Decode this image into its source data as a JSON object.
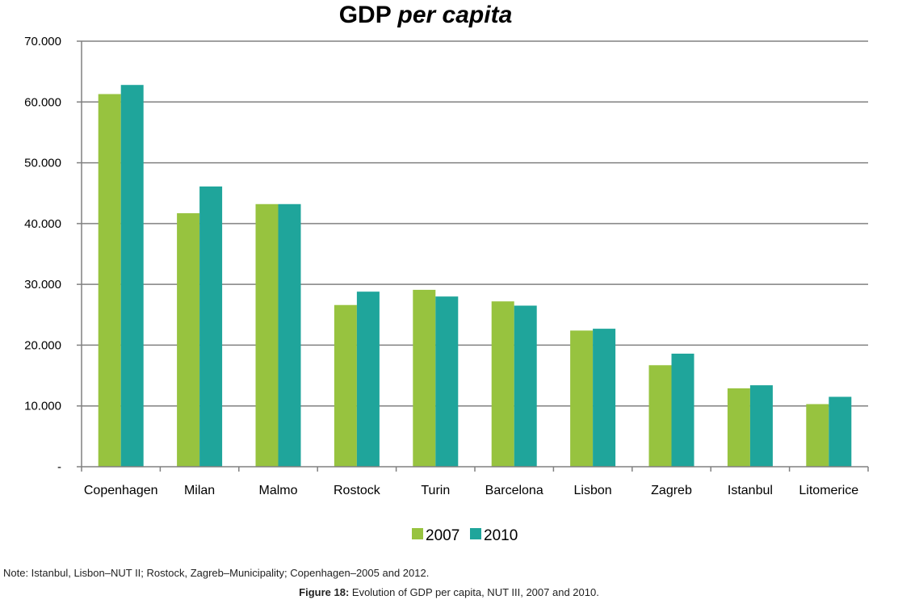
{
  "chart_data": {
    "type": "bar",
    "title": "GDP",
    "title_italic": "per capita",
    "categories": [
      "Copenhagen",
      "Milan",
      "Malmo",
      "Rostock",
      "Turin",
      "Barcelona",
      "Lisbon",
      "Zagreb",
      "Istanbul",
      "Litomerice"
    ],
    "series": [
      {
        "name": "2007",
        "color": "#97c33f",
        "values": [
          61300,
          41700,
          43200,
          26600,
          29100,
          27200,
          22400,
          16700,
          12900,
          10300
        ]
      },
      {
        "name": "2010",
        "color": "#1fa59b",
        "values": [
          62800,
          46100,
          43200,
          28800,
          28000,
          26500,
          22700,
          18600,
          13400,
          11500
        ]
      }
    ],
    "ylim": [
      0,
      70000
    ],
    "yticks": [
      {
        "value": 0,
        "label": "-"
      },
      {
        "value": 10000,
        "label": "10.000"
      },
      {
        "value": 20000,
        "label": "20.000"
      },
      {
        "value": 30000,
        "label": "30.000"
      },
      {
        "value": 40000,
        "label": "40.000"
      },
      {
        "value": 50000,
        "label": "50.000"
      },
      {
        "value": 60000,
        "label": "60.000"
      },
      {
        "value": 70000,
        "label": "70.000"
      }
    ],
    "grid": true,
    "legend_position": "bottom-center",
    "gridline_color": "#808080"
  },
  "note": "Note: Istanbul, Lisbon–NUT II; Rostock, Zagreb–Municipality; Copenhagen–2005 and 2012.",
  "caption": {
    "label": "Figure 18:",
    "text": " Evolution of GDP per capita, NUT III, 2007 and 2010."
  }
}
